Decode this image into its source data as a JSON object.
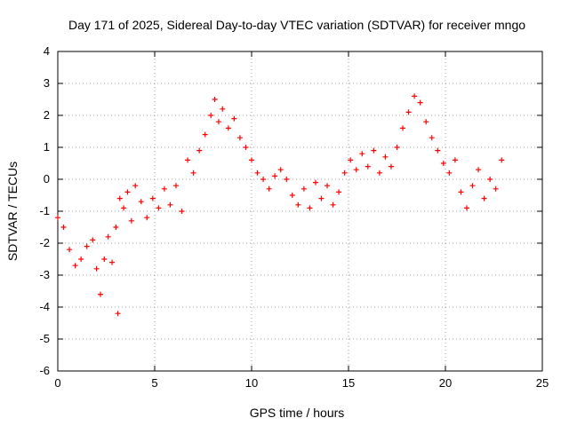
{
  "chart_data": {
    "type": "scatter",
    "title": "Day 171 of 2025, Sidereal Day-to-day VTEC variation (SDTVAR) for receiver mngo",
    "xlabel": "GPS time / hours",
    "ylabel": "SDTVAR / TECUs",
    "xlim": [
      0,
      25
    ],
    "ylim": [
      -6,
      4
    ],
    "xticks": [
      0,
      5,
      10,
      15,
      20,
      25
    ],
    "yticks": [
      -6,
      -5,
      -4,
      -3,
      -2,
      -1,
      0,
      1,
      2,
      3,
      4
    ],
    "grid": true,
    "marker": "+",
    "series": [
      {
        "name": "SDTVAR",
        "color": "#ff0000",
        "x": [
          0.0,
          0.3,
          0.6,
          0.9,
          1.2,
          1.5,
          1.8,
          2.0,
          2.2,
          2.4,
          2.6,
          2.8,
          3.0,
          3.1,
          3.2,
          3.4,
          3.6,
          3.8,
          4.0,
          4.3,
          4.6,
          4.9,
          5.2,
          5.5,
          5.8,
          6.1,
          6.4,
          6.7,
          7.0,
          7.3,
          7.6,
          7.9,
          8.1,
          8.3,
          8.5,
          8.8,
          9.1,
          9.4,
          9.7,
          10.0,
          10.3,
          10.6,
          10.9,
          11.2,
          11.5,
          11.8,
          12.1,
          12.4,
          12.7,
          13.0,
          13.3,
          13.6,
          13.9,
          14.2,
          14.5,
          14.8,
          15.1,
          15.4,
          15.7,
          16.0,
          16.3,
          16.6,
          16.9,
          17.2,
          17.5,
          17.8,
          18.1,
          18.4,
          18.7,
          19.0,
          19.3,
          19.6,
          19.9,
          20.2,
          20.5,
          20.8,
          21.1,
          21.4,
          21.7,
          22.0,
          22.3,
          22.6,
          22.9
        ],
        "y": [
          -1.2,
          -1.5,
          -2.2,
          -2.7,
          -2.5,
          -2.1,
          -1.9,
          -2.8,
          -3.6,
          -2.5,
          -1.8,
          -2.6,
          -1.5,
          -4.2,
          -0.6,
          -0.9,
          -0.4,
          -1.3,
          -0.2,
          -0.7,
          -1.2,
          -0.6,
          -0.9,
          -0.3,
          -0.8,
          -0.2,
          -1.0,
          0.6,
          0.2,
          0.9,
          1.4,
          2.0,
          2.5,
          1.8,
          2.2,
          1.6,
          1.9,
          1.3,
          1.0,
          0.6,
          0.2,
          0.0,
          -0.3,
          0.1,
          0.3,
          0.0,
          -0.5,
          -0.8,
          -0.3,
          -0.9,
          -0.1,
          -0.6,
          -0.2,
          -0.8,
          -0.4,
          0.2,
          0.6,
          0.3,
          0.8,
          0.4,
          0.9,
          0.2,
          0.7,
          0.4,
          1.0,
          1.6,
          2.1,
          2.6,
          2.4,
          1.8,
          1.3,
          0.9,
          0.5,
          0.2,
          0.6,
          -0.4,
          -0.9,
          -0.2,
          0.3,
          -0.6,
          0.0,
          -0.3,
          0.6
        ]
      }
    ]
  }
}
